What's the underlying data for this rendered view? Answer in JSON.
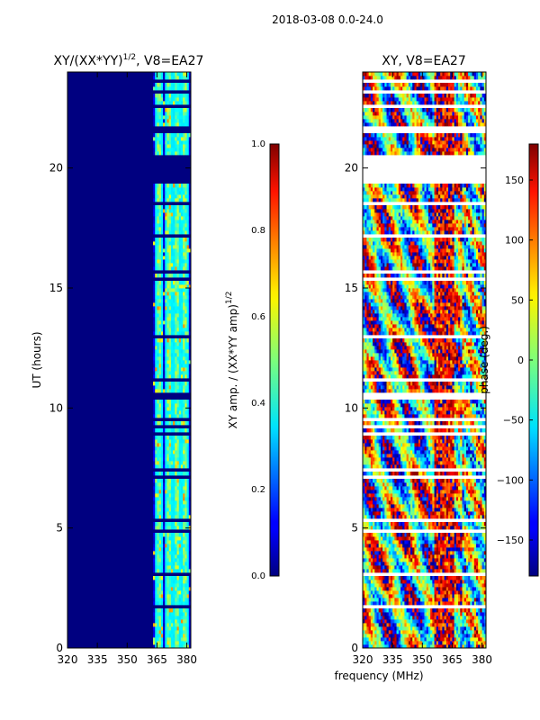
{
  "suptitle": "2018-03-08 0.0-24.0",
  "chart_data": [
    {
      "type": "heatmap",
      "title_main": "XY/(XX*YY)",
      "title_sup": "1/2",
      "title_rest": ", V8=EA27",
      "xlabel": "",
      "ylabel": "UT (hours)",
      "xlim": [
        320,
        382
      ],
      "ylim": [
        0,
        24
      ],
      "xticks": [
        320,
        335,
        350,
        365,
        380
      ],
      "yticks": [
        0,
        5,
        10,
        15,
        20
      ],
      "colorbar": {
        "label_main": "XY amp. / (XX*YY amp)",
        "label_sup": "1/2",
        "range": [
          0.0,
          1.0
        ],
        "ticks": [
          "0.0",
          "0.2",
          "0.4",
          "0.6",
          "0.8",
          "1.0"
        ],
        "colormap": "jet"
      },
      "background_value": 0.0,
      "active_band_mhz": [
        363,
        382
      ],
      "peak_channels_mhz": [
        366,
        371,
        375,
        379
      ],
      "blank_ut_intervals_hours": [
        [
          20.6,
          19.3
        ],
        [
          21.6,
          21.4
        ],
        [
          10.6,
          10.3
        ],
        [
          5.4,
          5.2
        ],
        [
          1.8,
          1.6
        ],
        [
          18.2,
          18.1
        ],
        [
          22.6,
          22.5
        ],
        [
          17.3,
          17.2
        ],
        [
          2.9,
          2.8
        ]
      ]
    },
    {
      "type": "heatmap",
      "title": "XY, V8=EA27",
      "xlabel": "frequency (MHz)",
      "ylabel": "",
      "xlim": [
        320,
        382
      ],
      "ylim": [
        0,
        24
      ],
      "xticks": [
        320,
        335,
        350,
        365,
        380
      ],
      "yticks": [
        0,
        5,
        10,
        15,
        20
      ],
      "colorbar": {
        "label": "phase (deg.)",
        "range": [
          -180,
          180
        ],
        "ticks": [
          "150",
          "100",
          "50",
          "0",
          "−50",
          "−100",
          "−150"
        ],
        "tick_values": [
          150,
          100,
          50,
          0,
          -50,
          -100,
          -150
        ],
        "colormap": "jet"
      },
      "blank_ut_intervals_hours": [
        [
          20.6,
          19.3
        ],
        [
          21.6,
          21.4
        ],
        [
          10.6,
          10.3
        ],
        [
          5.4,
          5.2
        ],
        [
          1.8,
          1.6
        ]
      ]
    }
  ]
}
